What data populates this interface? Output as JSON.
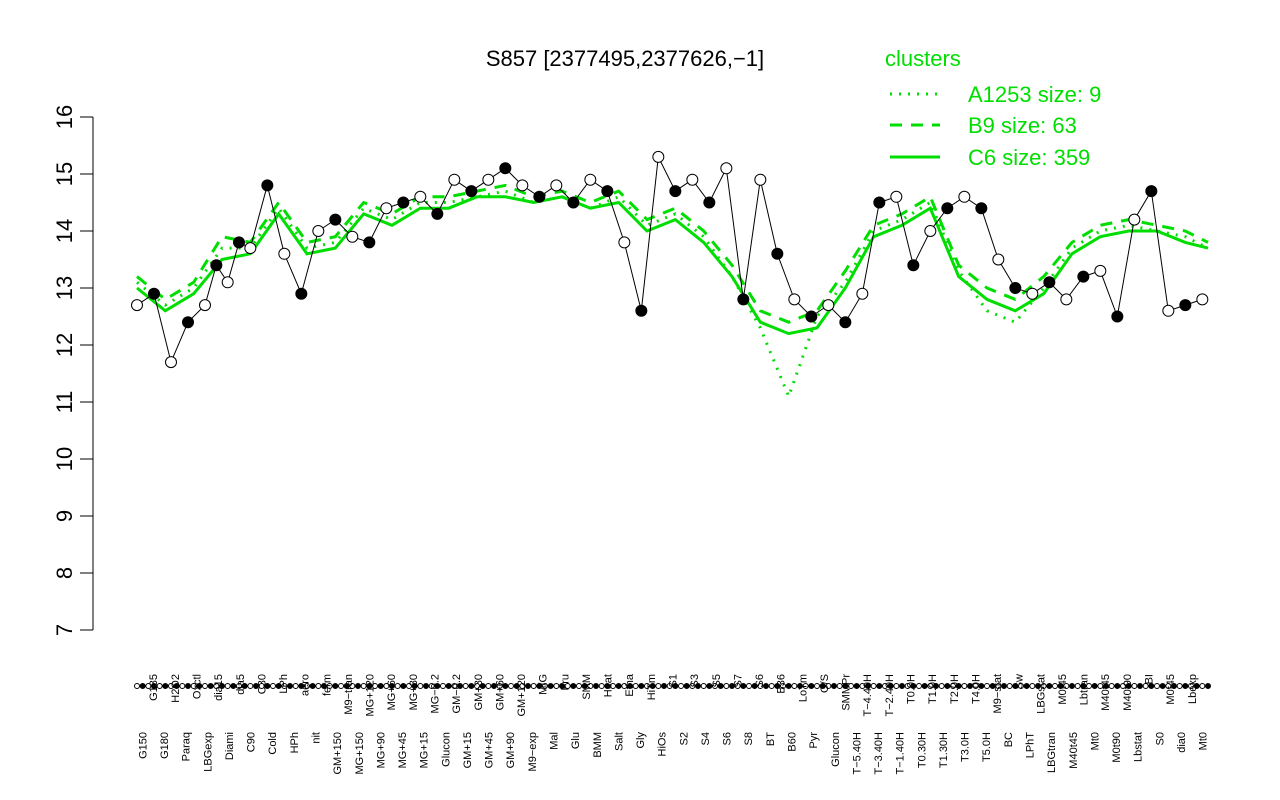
{
  "chart_data": {
    "type": "line",
    "title": "S857 [2377495,2377626,−1]",
    "xlabel": "",
    "ylabel": "",
    "ylim": [
      7,
      16
    ],
    "yticks": [
      7,
      8,
      9,
      10,
      11,
      12,
      13,
      14,
      15,
      16
    ],
    "xtick_labels": [
      "G150",
      "G135",
      "G180",
      "H2O2",
      "Paraq",
      "Oxctl",
      "LBGexp",
      "dia15",
      "Diami",
      "dia5",
      "C90",
      "C30",
      "Cold",
      "LPh",
      "HPh",
      "aero",
      "nit",
      "ferm",
      "GM+150",
      "M9−tran",
      "MG+150",
      "MG+120",
      "MG+90",
      "MG+60",
      "MG+45",
      "MG+30",
      "MG+15",
      "MG−0.2",
      "Glucon",
      "GM−0.2",
      "GM+15",
      "GM+30",
      "GM+45",
      "GM+60",
      "GM+90",
      "GM+120",
      "M9−exp",
      "M/G",
      "Mal",
      "Fru",
      "Glu",
      "SMM",
      "BMM",
      "Heat",
      "Salt",
      "Etha",
      "Gly",
      "HiTm",
      "HiOs",
      "S1",
      "S2",
      "S3",
      "S4",
      "S5",
      "S6",
      "S7",
      "S8",
      "S6",
      "BT",
      "B36",
      "B60",
      "LoTm",
      "Pyr",
      "G/S",
      "Glucon",
      "SMMPr",
      "T−5.40H",
      "T−4.40H",
      "T−3.40H",
      "T−2.40H",
      "T−1.40H",
      "T0.0H",
      "T0.30H",
      "T1.0H",
      "T1.30H",
      "T2.0H",
      "T3.0H",
      "T4.0H",
      "T5.0H",
      "M9−stat",
      "BC",
      "Sw",
      "LPhT",
      "LBGstat",
      "LBGtran",
      "M0t45",
      "M40t45",
      "Lbtran",
      "Mt0",
      "M40t45",
      "M0t90",
      "M40t90",
      "Lbstat",
      "BI",
      "S0",
      "M0t45",
      "dia0",
      "Lbexp",
      "Mt0"
    ],
    "legend": {
      "title": "clusters",
      "entries": [
        {
          "label": "A1253 size: 9",
          "style": "dotted"
        },
        {
          "label": "B9 size: 63",
          "style": "dashed"
        },
        {
          "label": "C6 size: 359",
          "style": "solid"
        }
      ],
      "placement": "top-right"
    },
    "series_color": "#00dd00",
    "x_count": 190,
    "series": [
      {
        "style": "solid",
        "x": [
          0,
          5,
          10,
          15,
          20,
          25,
          30,
          35,
          40,
          45,
          50,
          55,
          60,
          65,
          70,
          75,
          80,
          85,
          90,
          95,
          100,
          105,
          110,
          115,
          120,
          125,
          130,
          135,
          140,
          145,
          150,
          155,
          160,
          165,
          170,
          175,
          180,
          185,
          189
        ],
        "y": [
          13.0,
          12.6,
          12.9,
          13.5,
          13.6,
          14.3,
          13.6,
          13.7,
          14.3,
          14.1,
          14.4,
          14.4,
          14.6,
          14.6,
          14.5,
          14.6,
          14.4,
          14.5,
          14.0,
          14.2,
          13.8,
          13.2,
          12.4,
          12.2,
          12.3,
          13.0,
          13.9,
          14.1,
          14.4,
          13.2,
          12.8,
          12.6,
          12.9,
          13.6,
          13.9,
          14.0,
          14.0,
          13.8,
          13.7
        ]
      },
      {
        "style": "dashed",
        "x": [
          0,
          5,
          10,
          15,
          20,
          25,
          30,
          35,
          40,
          45,
          50,
          55,
          60,
          65,
          70,
          75,
          80,
          85,
          90,
          95,
          100,
          105,
          110,
          115,
          120,
          125,
          130,
          135,
          140,
          145,
          150,
          155,
          160,
          165,
          170,
          175,
          180,
          185,
          189
        ],
        "y": [
          13.2,
          12.8,
          13.1,
          13.9,
          13.8,
          14.5,
          13.8,
          13.9,
          14.5,
          14.3,
          14.6,
          14.6,
          14.7,
          14.8,
          14.6,
          14.7,
          14.5,
          14.7,
          14.2,
          14.4,
          14.0,
          13.4,
          12.6,
          12.4,
          12.6,
          13.3,
          14.1,
          14.3,
          14.6,
          13.4,
          13.0,
          12.8,
          13.2,
          13.8,
          14.1,
          14.2,
          14.1,
          14.0,
          13.8
        ]
      },
      {
        "style": "dotted",
        "x": [
          0,
          5,
          10,
          15,
          20,
          25,
          30,
          35,
          40,
          45,
          50,
          55,
          60,
          65,
          70,
          75,
          80,
          85,
          90,
          95,
          100,
          105,
          110,
          115,
          120,
          125,
          130,
          135,
          140,
          145,
          150,
          155,
          160,
          165,
          170,
          175,
          180,
          185,
          189
        ],
        "y": [
          13.1,
          12.7,
          13.0,
          13.7,
          13.7,
          14.4,
          13.7,
          13.8,
          14.4,
          14.2,
          14.5,
          14.5,
          14.6,
          14.7,
          14.5,
          14.6,
          14.4,
          14.6,
          14.1,
          14.3,
          13.9,
          13.2,
          12.3,
          11.1,
          12.5,
          13.1,
          14.0,
          14.2,
          14.5,
          13.3,
          12.6,
          12.4,
          13.0,
          13.7,
          14.0,
          14.1,
          14.0,
          13.9,
          13.7
        ]
      }
    ],
    "points": {
      "x": [
        0,
        3,
        6,
        9,
        12,
        14,
        16,
        18,
        20,
        23,
        26,
        29,
        32,
        35,
        38,
        41,
        44,
        47,
        50,
        53,
        56,
        59,
        62,
        65,
        68,
        71,
        74,
        77,
        80,
        83,
        86,
        89,
        92,
        95,
        98,
        101,
        104,
        107,
        110,
        113,
        116,
        119,
        122,
        125,
        128,
        131,
        134,
        137,
        140,
        143,
        146,
        149,
        152,
        155,
        158,
        161,
        164,
        167,
        170,
        173,
        176,
        179,
        182,
        185,
        188
      ],
      "y": [
        12.7,
        12.9,
        11.7,
        12.4,
        12.7,
        13.4,
        13.1,
        13.8,
        13.7,
        14.8,
        13.6,
        12.9,
        14.0,
        14.2,
        13.9,
        13.8,
        14.4,
        14.5,
        14.6,
        14.3,
        14.9,
        14.7,
        14.9,
        15.1,
        14.8,
        14.6,
        14.8,
        14.5,
        14.9,
        14.7,
        13.8,
        12.6,
        15.3,
        14.7,
        14.9,
        14.5,
        15.1,
        12.8,
        14.9,
        13.6,
        12.8,
        12.5,
        12.7,
        12.4,
        12.9,
        14.5,
        14.6,
        13.4,
        14.0,
        14.4,
        14.6,
        14.4,
        13.5,
        13.0,
        12.9,
        13.1,
        12.8,
        13.2,
        13.3,
        12.5,
        14.2,
        14.7,
        12.6,
        12.7,
        12.8
      ],
      "filled": [
        false,
        true,
        false,
        true,
        false,
        true,
        false,
        true,
        false,
        true,
        false,
        true,
        false,
        true,
        false,
        true,
        false,
        true,
        false,
        true,
        false,
        true,
        false,
        true,
        false,
        true,
        false,
        true,
        false,
        true,
        false,
        true,
        false,
        true,
        false,
        true,
        false,
        true,
        false,
        true,
        false,
        true,
        false,
        true,
        false,
        true,
        false,
        true,
        false,
        true,
        false,
        true,
        false,
        true,
        false,
        true,
        false,
        true,
        false,
        true,
        false,
        true,
        false,
        true,
        false
      ]
    }
  }
}
